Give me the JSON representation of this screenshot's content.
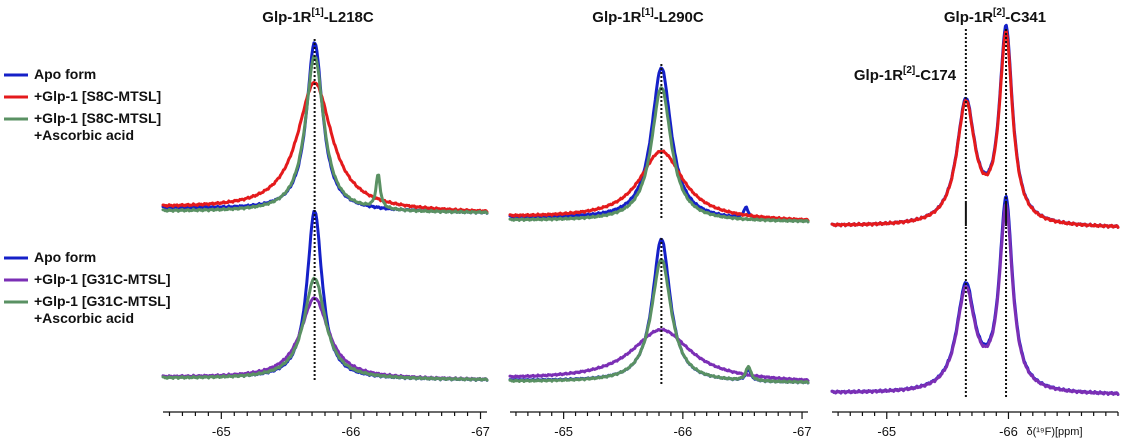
{
  "colors": {
    "apo": "#1520c8",
    "s8c": "#e41a1c",
    "ascorbic": "#5a9163",
    "g31c": "#7b2fb5"
  },
  "legends": [
    {
      "entries": [
        {
          "color": "#1520c8",
          "lines": [
            "Apo form"
          ]
        },
        {
          "color": "#e41a1c",
          "lines": [
            "+Glp-1 [S8C-MTSL]"
          ]
        },
        {
          "color": "#5a9163",
          "lines": [
            "+Glp-1 [S8C-MTSL]",
            "+Ascorbic acid"
          ]
        }
      ]
    },
    {
      "entries": [
        {
          "color": "#1520c8",
          "lines": [
            "Apo form"
          ]
        },
        {
          "color": "#7b2fb5",
          "lines": [
            "+Glp-1 [G31C-MTSL]"
          ]
        },
        {
          "color": "#5a9163",
          "lines": [
            "+Glp-1 [G31C-MTSL]",
            "+Ascorbic acid"
          ]
        }
      ]
    }
  ],
  "chart_data": [
    {
      "type": "line",
      "title": {
        "base": "Glp-1R",
        "sup": "[1]",
        "rest": "-L218C"
      },
      "xlim": [
        -64.55,
        -67.05
      ],
      "xticks": [
        -65,
        -66,
        -67
      ],
      "tick_labels": [
        "-65",
        "-66",
        "-67"
      ],
      "xlabel": "",
      "reference_lines": [
        -65.72
      ],
      "annotations": [],
      "panels": [
        {
          "name": "top",
          "baseline": 213,
          "peak_top": 45,
          "series": [
            {
              "name": "Apo form",
              "color": "#1520c8",
              "peaks": [
                {
                  "c": -65.72,
                  "w": 0.075,
                  "h": 1.0
                }
              ],
              "tilt": 0.06
            },
            {
              "name": "+Glp-1 [S8C-MTSL]",
              "color": "#e41a1c",
              "peaks": [
                {
                  "c": -65.72,
                  "w": 0.16,
                  "h": 0.76
                }
              ],
              "tilt": 0.06
            },
            {
              "name": "+Glp-1 [S8C-MTSL] +Ascorbic acid",
              "color": "#5a9163",
              "peaks": [
                {
                  "c": -65.72,
                  "w": 0.085,
                  "h": 0.93
                },
                {
                  "c": -66.21,
                  "w": 0.02,
                  "h": 0.2
                }
              ],
              "tilt": 0.02
            }
          ]
        },
        {
          "name": "bottom",
          "baseline": 380,
          "peak_top": 212,
          "series": [
            {
              "name": "Apo form",
              "color": "#1520c8",
              "peaks": [
                {
                  "c": -65.72,
                  "w": 0.07,
                  "h": 1.0
                }
              ],
              "tilt": 0.03
            },
            {
              "name": "+Glp-1 [G31C-MTSL]",
              "color": "#7b2fb5",
              "peaks": [
                {
                  "c": -65.72,
                  "w": 0.13,
                  "h": 0.48
                }
              ],
              "tilt": 0.03
            },
            {
              "name": "+Glp-1 [G31C-MTSL] +Ascorbic acid",
              "color": "#5a9163",
              "peaks": [
                {
                  "c": -65.72,
                  "w": 0.1,
                  "h": 0.6
                }
              ],
              "tilt": 0.02
            }
          ]
        }
      ]
    },
    {
      "type": "line",
      "title": {
        "base": "Glp-1R",
        "sup": "[1]",
        "rest": "-L290C"
      },
      "xlim": [
        -64.55,
        -67.05
      ],
      "xticks": [
        -65,
        -66,
        -67
      ],
      "tick_labels": [
        "-65",
        "-66",
        "-67"
      ],
      "xlabel": "",
      "reference_lines": [
        -65.82
      ],
      "annotations": [],
      "panels": [
        {
          "name": "top",
          "baseline": 222,
          "peak_top": 70,
          "series": [
            {
              "name": "Apo form",
              "color": "#1520c8",
              "peaks": [
                {
                  "c": -65.82,
                  "w": 0.1,
                  "h": 1.0
                },
                {
                  "c": -66.53,
                  "w": 0.025,
                  "h": 0.07
                }
              ],
              "tilt": 0.06
            },
            {
              "name": "+Glp-1 [S8C-MTSL]",
              "color": "#e41a1c",
              "peaks": [
                {
                  "c": -65.82,
                  "w": 0.22,
                  "h": 0.45
                }
              ],
              "tilt": 0.06
            },
            {
              "name": "+Glp-1 [S8C-MTSL] +Ascorbic acid",
              "color": "#5a9163",
              "peaks": [
                {
                  "c": -65.82,
                  "w": 0.1,
                  "h": 0.88
                }
              ],
              "tilt": 0.02
            }
          ]
        },
        {
          "name": "bottom",
          "baseline": 383,
          "peak_top": 240,
          "series": [
            {
              "name": "Apo form",
              "color": "#1520c8",
              "peaks": [
                {
                  "c": -65.82,
                  "w": 0.09,
                  "h": 1.0
                },
                {
                  "c": -66.55,
                  "w": 0.025,
                  "h": 0.08
                }
              ],
              "tilt": 0.03
            },
            {
              "name": "+Glp-1 [G31C-MTSL]",
              "color": "#7b2fb5",
              "peaks": [
                {
                  "c": -65.82,
                  "w": 0.3,
                  "h": 0.36
                }
              ],
              "tilt": 0.05
            },
            {
              "name": "+Glp-1 [G31C-MTSL] +Ascorbic acid",
              "color": "#5a9163",
              "peaks": [
                {
                  "c": -65.82,
                  "w": 0.1,
                  "h": 0.86
                },
                {
                  "c": -66.55,
                  "w": 0.025,
                  "h": 0.1
                }
              ],
              "tilt": 0.02
            }
          ]
        }
      ]
    },
    {
      "type": "line",
      "title": {
        "base": "Glp-1R",
        "sup": "[2]",
        "rest": "-C341"
      },
      "xlim": [
        -64.55,
        -66.9
      ],
      "xticks": [
        -65,
        -66
      ],
      "tick_labels": [
        "-65",
        "-66"
      ],
      "xlabel": "δ(¹⁹F)[ppm]",
      "reference_lines": [
        -65.65,
        -65.98
      ],
      "annotations": [
        {
          "base": "Glp-1R",
          "sup": "[2]",
          "rest": "-C174"
        }
      ],
      "panels": [
        {
          "name": "top",
          "baseline": 228,
          "peak_top": 35,
          "series": [
            {
              "name": "Apo form",
              "color": "#1520c8",
              "peaks": [
                {
                  "c": -65.65,
                  "w": 0.09,
                  "h": 0.63
                },
                {
                  "c": -65.98,
                  "w": 0.065,
                  "h": 1.0
                }
              ],
              "tilt": 0.02
            },
            {
              "name": "+Glp-1 [S8C-MTSL]",
              "color": "#e41a1c",
              "peaks": [
                {
                  "c": -65.65,
                  "w": 0.09,
                  "h": 0.62
                },
                {
                  "c": -65.98,
                  "w": 0.065,
                  "h": 0.97
                }
              ],
              "tilt": 0.02
            }
          ]
        },
        {
          "name": "bottom",
          "baseline": 395,
          "peak_top": 205,
          "series": [
            {
              "name": "Apo form",
              "color": "#1520c8",
              "peaks": [
                {
                  "c": -65.65,
                  "w": 0.09,
                  "h": 0.55
                },
                {
                  "c": -65.98,
                  "w": 0.065,
                  "h": 1.0
                }
              ],
              "tilt": 0.02
            },
            {
              "name": "+Glp-1 [G31C-MTSL]",
              "color": "#7b2fb5",
              "peaks": [
                {
                  "c": -65.65,
                  "w": 0.09,
                  "h": 0.53
                },
                {
                  "c": -65.98,
                  "w": 0.065,
                  "h": 0.96
                }
              ],
              "tilt": 0.02
            }
          ]
        }
      ]
    }
  ]
}
